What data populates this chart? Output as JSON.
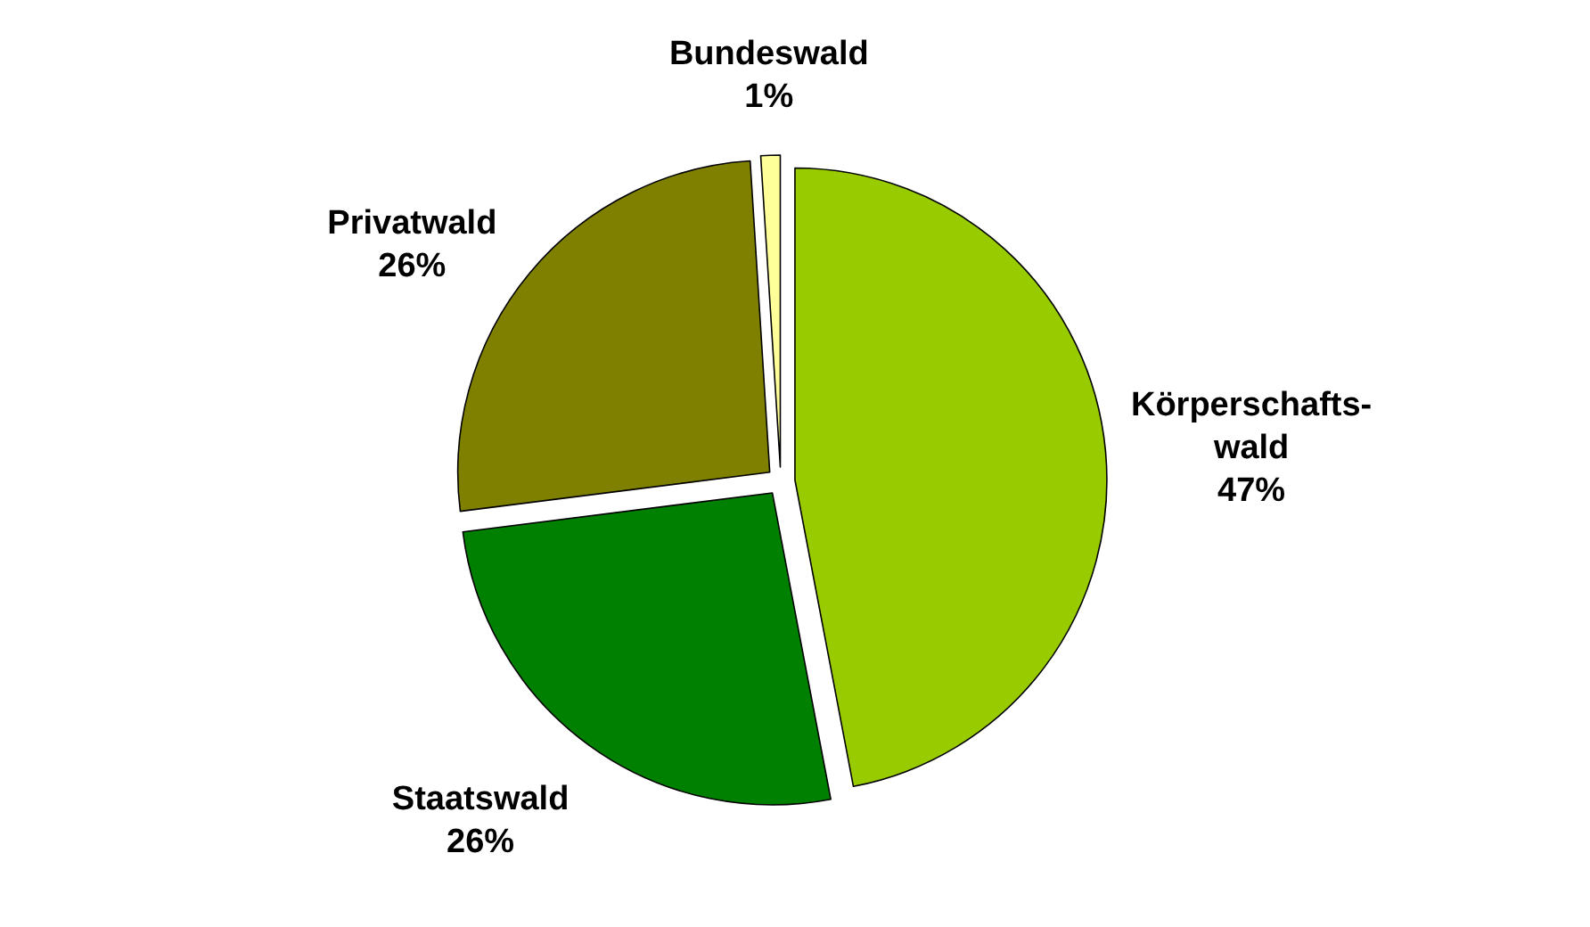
{
  "chart_data": {
    "type": "pie",
    "categories": [
      "Körperschafts-wald",
      "Staatswald",
      "Privatwald",
      "Bundeswald"
    ],
    "values": [
      47,
      26,
      26,
      1
    ],
    "value_labels": [
      "47%",
      "26%",
      "26%",
      "1%"
    ],
    "colors": [
      "#99cc00",
      "#008000",
      "#808000",
      "#ffff99"
    ]
  }
}
